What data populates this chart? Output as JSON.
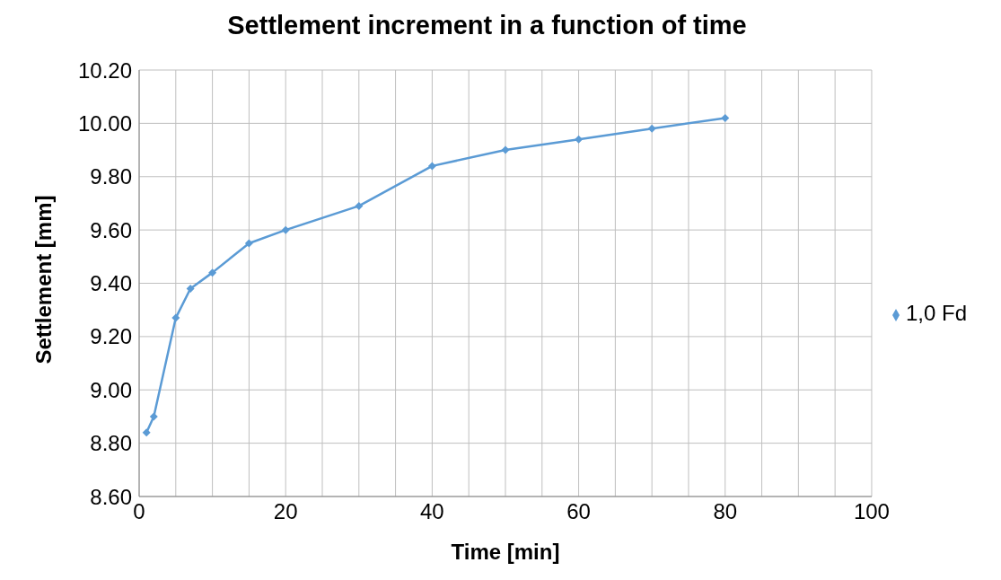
{
  "chart_data": {
    "type": "line",
    "title": "Settlement increment in a function of time",
    "xlabel": "Time [min]",
    "ylabel": "Settlement [mm]",
    "x": [
      1,
      2,
      5,
      7,
      10,
      15,
      20,
      30,
      40,
      50,
      60,
      70,
      80
    ],
    "series": [
      {
        "name": "1,0 Fd",
        "color": "#5b9bd5",
        "values": [
          8.84,
          8.9,
          9.27,
          9.38,
          9.44,
          9.55,
          9.6,
          9.69,
          9.84,
          9.9,
          9.94,
          9.98,
          10.02
        ]
      }
    ],
    "xlim": [
      0,
      100
    ],
    "xticks": [
      0,
      {
        "value": 5,
        "label": null
      },
      {
        "value": 10,
        "label": null
      },
      {
        "value": 15,
        "label": null
      },
      20,
      {
        "value": 25,
        "label": null
      },
      {
        "value": 30,
        "label": null
      },
      {
        "value": 35,
        "label": null
      },
      40,
      {
        "value": 45,
        "label": null
      },
      {
        "value": 50,
        "label": null
      },
      {
        "value": 55,
        "label": null
      },
      60,
      {
        "value": 65,
        "label": null
      },
      {
        "value": 70,
        "label": null
      },
      {
        "value": 75,
        "label": null
      },
      80,
      {
        "value": 85,
        "label": null
      },
      {
        "value": 90,
        "label": null
      },
      {
        "value": 95,
        "label": null
      },
      100
    ],
    "ylim": [
      8.6,
      10.2
    ],
    "yticks": [
      {
        "value": 8.6,
        "label": "8.60"
      },
      {
        "value": 8.8,
        "label": "8.80"
      },
      {
        "value": 9.0,
        "label": "9.00"
      },
      {
        "value": 9.2,
        "label": "9.20"
      },
      {
        "value": 9.4,
        "label": "9.40"
      },
      {
        "value": 9.6,
        "label": "9.60"
      },
      {
        "value": 9.8,
        "label": "9.80"
      },
      {
        "value": 10.0,
        "label": "10.00"
      },
      {
        "value": 10.2,
        "label": "10.20"
      }
    ],
    "grid": true,
    "legend": "right",
    "marker": "diamond",
    "line_style": "solid"
  }
}
